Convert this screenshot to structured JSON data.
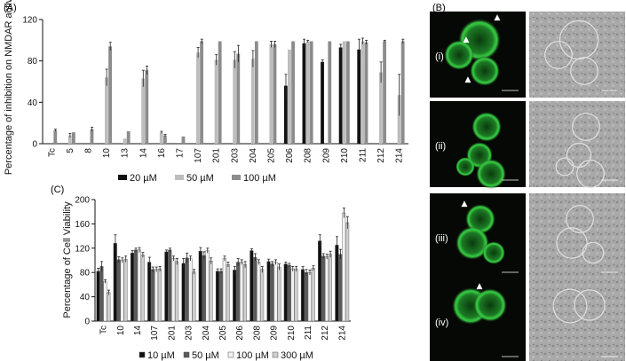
{
  "figure": {
    "panel_a_label": "(A)",
    "panel_b_label": "(B)",
    "panel_c_label": "(C)"
  },
  "chart_data": [
    {
      "panel": "(A)",
      "type": "bar",
      "ylabel": "Percentage of inhibition on NMDAR activity",
      "xlabel": "",
      "ylim": [
        0,
        120
      ],
      "yticks": [
        0,
        40,
        80,
        120
      ],
      "categories": [
        "Tc",
        "5",
        "8",
        "10",
        "13",
        "14",
        "16",
        "17",
        "107",
        "201",
        "203",
        "204",
        "205",
        "206",
        "208",
        "209",
        "210",
        "211",
        "212",
        "214"
      ],
      "series": [
        {
          "name": "20 µM",
          "color": "#111111",
          "values": [
            null,
            null,
            null,
            null,
            null,
            null,
            null,
            null,
            null,
            null,
            null,
            null,
            null,
            56,
            97,
            79,
            93,
            91,
            null,
            null
          ],
          "errors": [
            0,
            0,
            0,
            0,
            0,
            0,
            0,
            0,
            0,
            0,
            0,
            0,
            0,
            11,
            4,
            2,
            3,
            10,
            0,
            0
          ]
        },
        {
          "name": "50 µM",
          "color": "#bdbdbd",
          "values": [
            null,
            8,
            null,
            64,
            5,
            63,
            11,
            null,
            88,
            81,
            81,
            82,
            96,
            91,
            99,
            null,
            99,
            99,
            69,
            47
          ],
          "errors": [
            0,
            2,
            0,
            8,
            0,
            8,
            1,
            0,
            5,
            5,
            8,
            8,
            3,
            0,
            1,
            0,
            0,
            3,
            10,
            20
          ]
        },
        {
          "name": "100 µM",
          "color": "#8c8c8c",
          "values": [
            13,
            11,
            14,
            94,
            12,
            71,
            8,
            7,
            99,
            99,
            87,
            99,
            96,
            99,
            99,
            99,
            99,
            98,
            99,
            99
          ],
          "errors": [
            1,
            0,
            2,
            4,
            0,
            4,
            1,
            0,
            2,
            0,
            8,
            0,
            3,
            0,
            0,
            0,
            0,
            2,
            1,
            2
          ]
        }
      ],
      "legend_position": "bottom"
    },
    {
      "panel": "(C)",
      "type": "bar",
      "ylabel": "Percentage of Cell Viability",
      "xlabel": "",
      "ylim": [
        0,
        200
      ],
      "yticks": [
        0,
        40,
        80,
        120,
        160,
        200
      ],
      "categories": [
        "Tc",
        "10",
        "14",
        "107",
        "201",
        "203",
        "204",
        "205",
        "206",
        "208",
        "209",
        "210",
        "211",
        "212",
        "214"
      ],
      "series": [
        {
          "name": "10 µM",
          "color": "#111111",
          "values": [
            82,
            128,
            112,
            97,
            114,
            95,
            115,
            82,
            84,
            116,
            98,
            94,
            85,
            132,
            125
          ],
          "errors": [
            5,
            14,
            4,
            8,
            3,
            8,
            6,
            4,
            6,
            3,
            4,
            3,
            5,
            10,
            14
          ]
        },
        {
          "name": "50 µM",
          "color": "#5a5a5a",
          "values": [
            90,
            101,
            117,
            85,
            117,
            104,
            108,
            82,
            97,
            105,
            94,
            92,
            80,
            107,
            110
          ],
          "errors": [
            8,
            5,
            3,
            4,
            3,
            8,
            6,
            4,
            6,
            6,
            4,
            3,
            5,
            4,
            8
          ]
        },
        {
          "name": "100 µM",
          "color": "#f2f2f2",
          "values": [
            65,
            100,
            117,
            85,
            103,
            103,
            116,
            103,
            97,
            97,
            97,
            86,
            80,
            106,
            178
          ],
          "errors": [
            3,
            4,
            4,
            4,
            4,
            4,
            4,
            4,
            4,
            4,
            4,
            4,
            4,
            4,
            8
          ]
        },
        {
          "name": "300 µM",
          "color": "#cfcfcf",
          "values": [
            47,
            102,
            109,
            86,
            98,
            81,
            99,
            93,
            93,
            85,
            89,
            86,
            87,
            110,
            162
          ],
          "errors": [
            4,
            5,
            4,
            4,
            5,
            4,
            5,
            4,
            5,
            5,
            5,
            4,
            4,
            5,
            10
          ]
        }
      ],
      "legend_position": "bottom"
    }
  ],
  "microscopy": {
    "row_labels": [
      "(i)",
      "(ii)",
      "(iii)",
      "(iv)"
    ],
    "arrow_glyph": "▲",
    "fluorescence_color": "#2fbf3a"
  }
}
